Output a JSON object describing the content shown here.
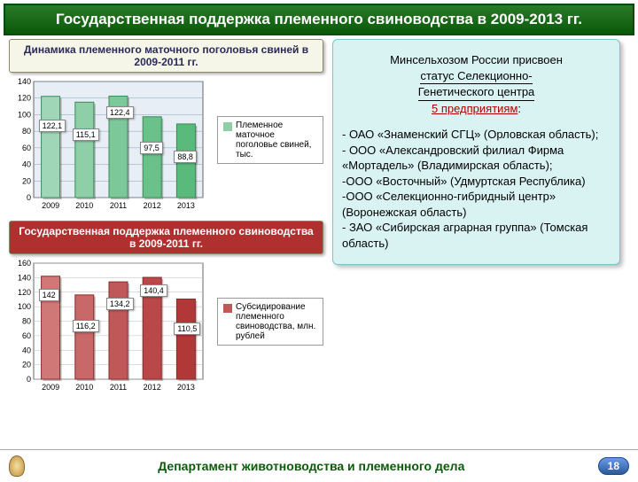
{
  "header": {
    "title": "Государственная поддержка племенного свиноводства в 2009-2013 гг."
  },
  "chart1": {
    "title": "Динамика племенного маточного поголовья свиней в 2009-2011 гг.",
    "type": "bar",
    "categories": [
      "2009",
      "2010",
      "2011",
      "2012",
      "2013"
    ],
    "values": [
      122.1,
      115.1,
      122.4,
      97.5,
      88.8
    ],
    "value_labels": [
      "122,1",
      "115,1",
      "122,4",
      "97,5",
      "88,8"
    ],
    "ylim": [
      0,
      140
    ],
    "ytick_step": 20,
    "bar_fill": [
      "#9fd6b7",
      "#8ecfa8",
      "#7cc899",
      "#6bc18a",
      "#5aba7b"
    ],
    "bar_border": "#3a8a5a",
    "plot_bg": "#e8eef5",
    "grid_color": "#8aa0b8",
    "legend_label": "Племенное маточное поголовье свиней, тыс.",
    "legend_swatch": "#8ecfa8"
  },
  "chart2": {
    "title": "Государственная поддержка племенного свиноводства в 2009-2011 гг.",
    "type": "bar",
    "categories": [
      "2009",
      "2010",
      "2011",
      "2012",
      "2013"
    ],
    "values": [
      142,
      116.2,
      134.2,
      140.4,
      110.5
    ],
    "value_labels": [
      "142",
      "116,2",
      "134,2",
      "140,4",
      "110,5"
    ],
    "ylim": [
      0,
      160
    ],
    "ytick_step": 20,
    "bar_fill": [
      "#d07878",
      "#c96868",
      "#c15858",
      "#ba4848",
      "#b23838"
    ],
    "bar_border": "#8a2a2a",
    "plot_bg": "#ffffff",
    "grid_color": "#bbbbbb",
    "legend_label": "Субсидирование племенного свиноводства, млн. рублей",
    "legend_swatch": "#c15858"
  },
  "info": {
    "line1": "Минсельхозом России присвоен",
    "line2": "статус Селекционно-",
    "line3": "Генетического центра",
    "line4": "5 предприятиям",
    "colon": ":",
    "body": "- ОАО «Знаменский СГЦ» (Орловская область);\n- ООО «Александровский филиал Фирма «Мортадель» (Владимирская область);\n-ООО «Восточный» (Удмуртская Республика)\n-ООО «Селекционно-гибридный центр» (Воронежская область)\n- ЗАО «Сибирская аграрная группа» (Томская область)"
  },
  "footer": {
    "text": "Департамент животноводства и племенного дела",
    "page": "18"
  }
}
